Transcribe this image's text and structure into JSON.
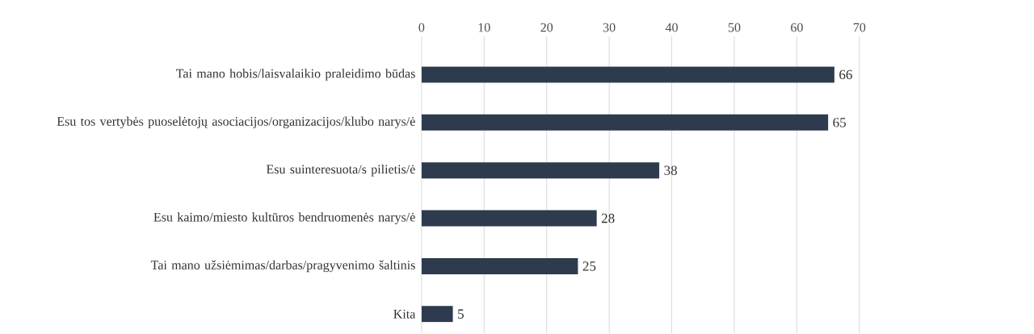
{
  "chart_data": {
    "type": "bar",
    "orientation": "horizontal",
    "categories": [
      "Tai mano hobis/laisvalaikio praleidimo būdas",
      "Esu tos vertybės puoselėtojų asociacijos/organizacijos/klubo narys/ė",
      "Esu suinteresuota/s pilietis/ė",
      "Esu kaimo/miesto kultūros bendruomenės narys/ė",
      "Tai mano užsiėmimas/darbas/pragyvenimo šaltinis",
      "Kita"
    ],
    "values": [
      66,
      65,
      38,
      28,
      25,
      5
    ],
    "color": "#2e3b4f",
    "xlim": [
      0,
      70
    ],
    "xticks": [
      0,
      10,
      20,
      30,
      40,
      50,
      60,
      70
    ],
    "grid": "x",
    "data_labels": true
  }
}
